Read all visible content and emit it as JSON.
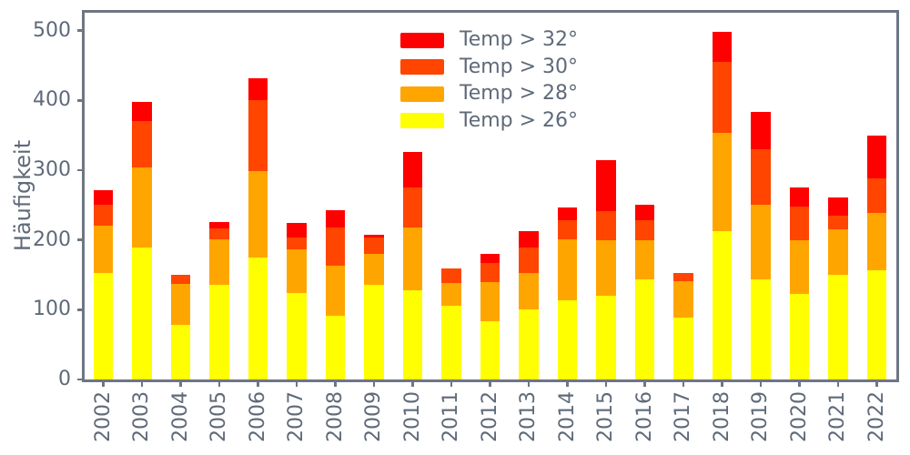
{
  "chart_data": {
    "type": "bar",
    "stacked": true,
    "title": "",
    "xlabel": "",
    "ylabel": "Häufigkeit",
    "categories": [
      "2002",
      "2003",
      "2004",
      "2005",
      "2006",
      "2007",
      "2008",
      "2009",
      "2010",
      "2011",
      "2012",
      "2013",
      "2014",
      "2015",
      "2016",
      "2017",
      "2018",
      "2019",
      "2020",
      "2021",
      "2022"
    ],
    "series": [
      {
        "name": "Temp > 26°",
        "color": "#ffff00",
        "values": [
          153,
          189,
          78,
          136,
          175,
          124,
          91,
          136,
          128,
          105,
          84,
          101,
          113,
          120,
          143,
          89,
          213,
          143,
          122,
          150,
          156
        ]
      },
      {
        "name": "Temp > 28°",
        "color": "#ffa500",
        "values": [
          67,
          115,
          59,
          65,
          124,
          63,
          72,
          44,
          90,
          33,
          55,
          51,
          88,
          79,
          56,
          52,
          140,
          108,
          77,
          65,
          83
        ]
      },
      {
        "name": "Temp > 30°",
        "color": "#ff4500",
        "values": [
          30,
          66,
          13,
          15,
          101,
          17,
          55,
          24,
          57,
          21,
          28,
          37,
          27,
          42,
          29,
          12,
          102,
          79,
          49,
          20,
          49
        ]
      },
      {
        "name": "Temp > 32°",
        "color": "#ff0000",
        "values": [
          21,
          28,
          0,
          10,
          32,
          20,
          25,
          4,
          51,
          0,
          13,
          24,
          18,
          73,
          23,
          0,
          43,
          53,
          27,
          26,
          62
        ]
      }
    ],
    "totals": [
      271,
      398,
      150,
      226,
      432,
      224,
      243,
      208,
      326,
      159,
      180,
      213,
      246,
      314,
      251,
      153,
      498,
      383,
      275,
      261,
      350
    ],
    "legend": [
      "Temp > 32°",
      "Temp > 30°",
      "Temp > 28°",
      "Temp > 26°"
    ],
    "legend_position": "upper center, inside plot, no frame",
    "yticks": [
      0,
      100,
      200,
      300,
      400,
      500
    ],
    "ylim": [
      0,
      525
    ],
    "grid": false,
    "x_tick_label_rotation": 90
  },
  "colors": {
    "red": "#ff0000",
    "orangered": "#ff4500",
    "orange": "#ffa500",
    "yellow": "#ffff00",
    "axis": "#6e7684",
    "text": "#5f6a79",
    "background": "#ffffff"
  }
}
